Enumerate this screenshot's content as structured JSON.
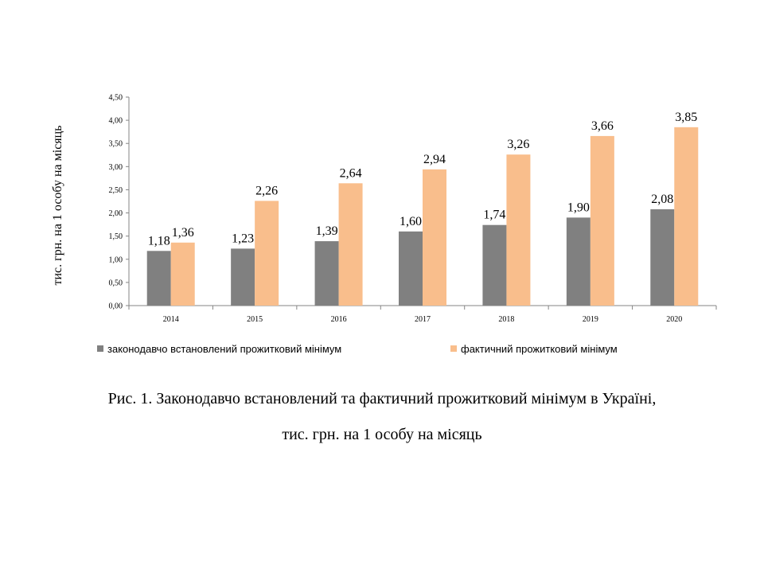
{
  "chart_data": {
    "type": "bar",
    "categories": [
      "2014",
      "2015",
      "2016",
      "2017",
      "2018",
      "2019",
      "2020"
    ],
    "series": [
      {
        "name": "законодавчо встановлений прожитковий мінімум",
        "values": [
          1.18,
          1.23,
          1.39,
          1.6,
          1.74,
          1.9,
          2.08
        ],
        "labels": [
          "1,18",
          "1,23",
          "1,39",
          "1,60",
          "1,74",
          "1,90",
          "2,08"
        ],
        "color": "#808080"
      },
      {
        "name": "фактичний прожитковий мінімум",
        "values": [
          1.36,
          2.26,
          2.64,
          2.94,
          3.26,
          3.66,
          3.85
        ],
        "labels": [
          "1,36",
          "2,26",
          "2,64",
          "2,94",
          "3,26",
          "3,66",
          "3,85"
        ],
        "color": "#F9BE8C"
      }
    ],
    "ylabel": "тис. грн. на 1 особу на місяць",
    "xlabel": "",
    "ylim": [
      0,
      4.5
    ],
    "yticks": [
      "0,00",
      "0,50",
      "1,00",
      "1,50",
      "2,00",
      "2,50",
      "3,00",
      "3,50",
      "4,00",
      "4,50"
    ],
    "grid": false,
    "legend_position": "bottom"
  },
  "caption": {
    "line1": "Рис. 1. Законодавчо встановлений та фактичний прожитковий мінімум в Україні,",
    "line2": "тис. грн. на 1 особу на місяць"
  }
}
